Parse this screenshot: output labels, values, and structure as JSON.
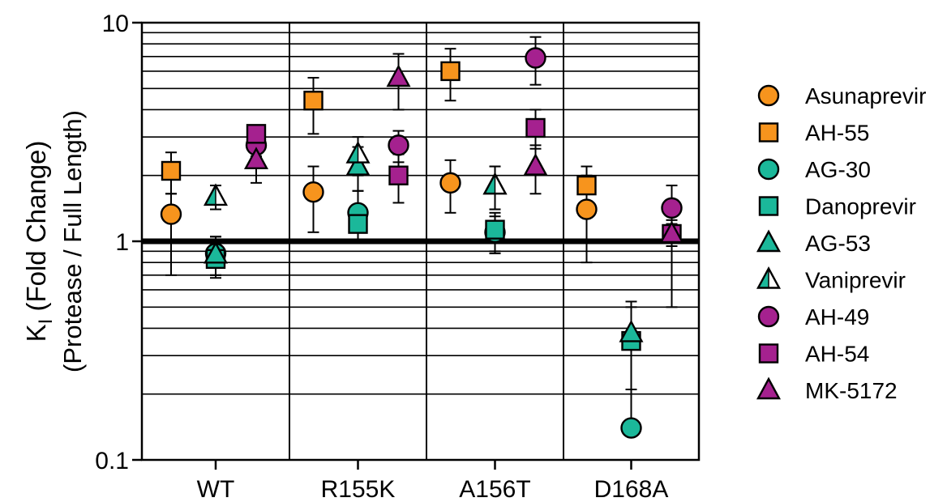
{
  "chart_data": {
    "type": "scatter",
    "yscale": "log",
    "ylim": [
      0.1,
      10
    ],
    "yticks": [
      {
        "value": 0.1,
        "label": "0.1"
      },
      {
        "value": 1,
        "label": "1"
      },
      {
        "value": 10,
        "label": "10"
      }
    ],
    "ylabel_main": "K",
    "ylabel_sub": "I",
    "ylabel_rest": " (Fold Change)",
    "ylabel_line2": "(Protease / Full Length)",
    "categories": [
      "WT",
      "R155K",
      "A156T",
      "D168A"
    ],
    "reference_line": 1,
    "grid": true,
    "legend_position": "right",
    "colors": {
      "orange": "#F7941D",
      "teal": "#1BB89A",
      "purple": "#A5218F",
      "white": "#ffffff"
    },
    "series": [
      {
        "name": "Asunaprevir",
        "marker": "circle",
        "color": "#F7941D",
        "points": [
          {
            "category": "WT",
            "y": 1.33,
            "lo": 0.7,
            "hi": 1.65
          },
          {
            "category": "R155K",
            "y": 1.68,
            "lo": 1.1,
            "hi": 2.2
          },
          {
            "category": "A156T",
            "y": 1.85,
            "lo": 1.35,
            "hi": 2.35
          },
          {
            "category": "D168A",
            "y": 1.4,
            "lo": 0.8,
            "hi": 2.0
          }
        ]
      },
      {
        "name": "AH-55",
        "marker": "square",
        "color": "#F7941D",
        "points": [
          {
            "category": "WT",
            "y": 2.1,
            "lo": 1.65,
            "hi": 2.55
          },
          {
            "category": "R155K",
            "y": 4.4,
            "lo": 3.1,
            "hi": 5.6
          },
          {
            "category": "A156T",
            "y": 6.0,
            "lo": 4.4,
            "hi": 7.6
          },
          {
            "category": "D168A",
            "y": 1.8,
            "lo": 1.4,
            "hi": 2.2
          }
        ]
      },
      {
        "name": "AG-30",
        "marker": "circle",
        "color": "#1BB89A",
        "points": [
          {
            "category": "WT",
            "y": 0.88,
            "lo": 0.7,
            "hi": 1.05
          },
          {
            "category": "R155K",
            "y": 1.35,
            "lo": 1.0,
            "hi": 1.7
          },
          {
            "category": "A156T",
            "y": 1.1,
            "lo": 0.9,
            "hi": 1.3
          },
          {
            "category": "D168A",
            "y": 0.14,
            "lo": null,
            "hi": 0.21
          }
        ]
      },
      {
        "name": "Danoprevir",
        "marker": "square",
        "color": "#1BB89A",
        "points": [
          {
            "category": "WT",
            "y": 0.83,
            "lo": 0.68,
            "hi": 0.98
          },
          {
            "category": "R155K",
            "y": 1.2,
            "lo": 1.0,
            "hi": 1.4
          },
          {
            "category": "A156T",
            "y": 1.13,
            "lo": 0.88,
            "hi": 1.35
          },
          {
            "category": "D168A",
            "y": 0.35,
            "lo": 0.21,
            "hi": 0.5
          }
        ]
      },
      {
        "name": "AG-53",
        "marker": "triangle",
        "color": "#1BB89A",
        "points": [
          {
            "category": "WT",
            "y": 0.87,
            "lo": 0.7,
            "hi": 1.05
          },
          {
            "category": "R155K",
            "y": 2.2,
            "lo": 1.7,
            "hi": 2.7
          },
          {
            "category": "A156T",
            "y": 1.8,
            "lo": 1.4,
            "hi": 2.2
          },
          {
            "category": "D168A",
            "y": 0.38,
            "lo": 0.21,
            "hi": 0.53
          }
        ]
      },
      {
        "name": "Vaniprevir",
        "marker": "half-triangle",
        "color": "#1BB89A",
        "points": [
          {
            "category": "WT",
            "y": 1.6,
            "lo": 1.4,
            "hi": 1.8
          },
          {
            "category": "R155K",
            "y": 2.5,
            "lo": 2.0,
            "hi": 3.0
          },
          {
            "category": "A156T",
            "y": 1.8,
            "lo": 1.4,
            "hi": 2.2
          }
        ]
      },
      {
        "name": "AH-49",
        "marker": "circle",
        "color": "#A5218F",
        "points": [
          {
            "category": "WT",
            "y": 2.75,
            "lo": 2.45,
            "hi": 3.1
          },
          {
            "category": "R155K",
            "y": 2.75,
            "lo": 2.3,
            "hi": 3.2
          },
          {
            "category": "A156T",
            "y": 6.9,
            "lo": 5.2,
            "hi": 8.6
          },
          {
            "category": "D168A",
            "y": 1.42,
            "lo": 0.5,
            "hi": 1.8
          }
        ]
      },
      {
        "name": "AH-54",
        "marker": "square",
        "color": "#A5218F",
        "points": [
          {
            "category": "WT",
            "y": 3.1,
            "lo": 2.85,
            "hi": 3.35
          },
          {
            "category": "R155K",
            "y": 2.0,
            "lo": 1.5,
            "hi": 2.5
          },
          {
            "category": "A156T",
            "y": 3.3,
            "lo": 2.65,
            "hi": 4.0
          },
          {
            "category": "D168A",
            "y": 1.08,
            "lo": 0.95,
            "hi": 1.25
          }
        ]
      },
      {
        "name": "MK-5172",
        "marker": "triangle",
        "color": "#A5218F",
        "points": [
          {
            "category": "WT",
            "y": 2.35,
            "lo": 1.85,
            "hi": 2.85
          },
          {
            "category": "R155K",
            "y": 5.6,
            "lo": 4.0,
            "hi": 7.2
          },
          {
            "category": "A156T",
            "y": 2.2,
            "lo": 1.65,
            "hi": 2.75
          },
          {
            "category": "D168A",
            "y": 1.08,
            "lo": 0.95,
            "hi": 1.2
          }
        ]
      }
    ]
  }
}
